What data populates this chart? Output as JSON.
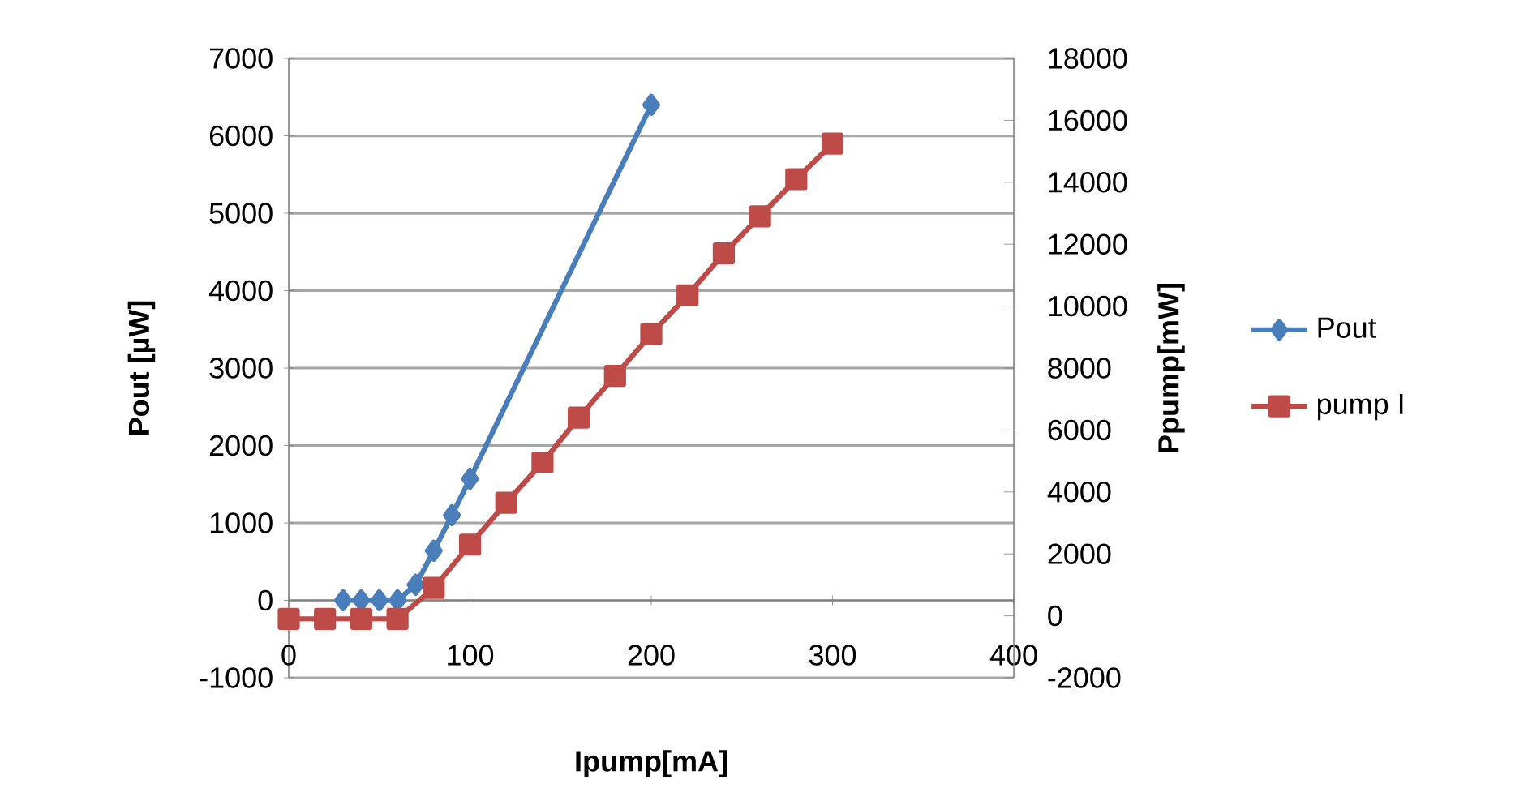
{
  "chart_data": {
    "type": "line",
    "xlabel": "Ipump[mA]",
    "ylabel": "Pout [µW]",
    "y2label": "Ppump[mW]",
    "xlim": [
      0,
      400
    ],
    "xticks": [
      0,
      100,
      200,
      300,
      400
    ],
    "ylim": [
      -1000,
      7000
    ],
    "yticks": [
      -1000,
      0,
      1000,
      2000,
      3000,
      4000,
      5000,
      6000,
      7000
    ],
    "y2lim": [
      -2000,
      18000
    ],
    "y2ticks": [
      -2000,
      0,
      2000,
      4000,
      6000,
      8000,
      10000,
      12000,
      14000,
      16000,
      18000
    ],
    "grid": "y",
    "legend": "right",
    "line_style": "solid",
    "series": [
      {
        "name": "Pout",
        "color": "#4a7ebb",
        "marker": "diamond",
        "x": [
          30,
          40,
          50,
          60,
          70,
          80,
          90,
          100,
          200
        ],
        "values": [
          0,
          0,
          0,
          0,
          200,
          640,
          1100,
          1570,
          6400
        ]
      },
      {
        "name": "pump I",
        "color": "#be4b48",
        "marker": "square",
        "axis": "y2",
        "x": [
          0,
          20,
          40,
          60,
          80,
          100,
          120,
          140,
          160,
          180,
          200,
          220,
          240,
          260,
          280,
          300
        ],
        "values": [
          -100,
          -100,
          -100,
          -100,
          900,
          2300,
          3650,
          4950,
          6400,
          7750,
          9100,
          10350,
          11700,
          12900,
          14100,
          15250
        ]
      }
    ]
  }
}
